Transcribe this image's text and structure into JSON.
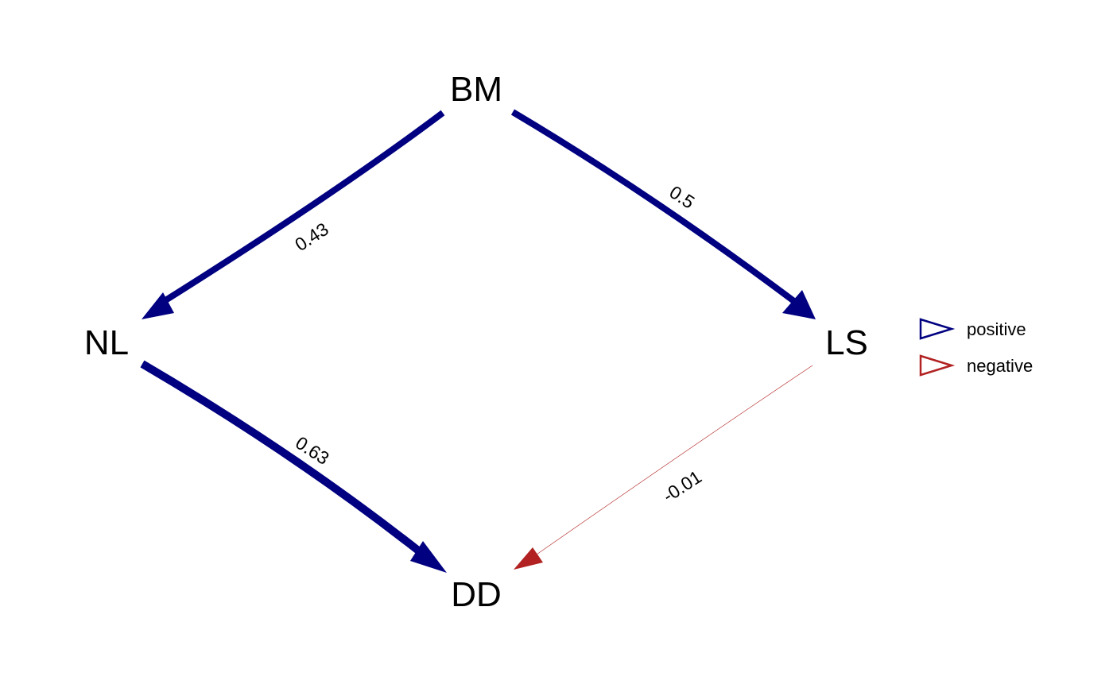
{
  "diagram": {
    "nodes": {
      "bm": "BM",
      "nl": "NL",
      "ls": "LS",
      "dd": "DD"
    },
    "edges": [
      {
        "from": "BM",
        "to": "NL",
        "coefficient": 0.43,
        "label": "0.43",
        "sign": "positive"
      },
      {
        "from": "BM",
        "to": "LS",
        "coefficient": 0.5,
        "label": "0.5",
        "sign": "positive"
      },
      {
        "from": "NL",
        "to": "DD",
        "coefficient": 0.63,
        "label": "0.63",
        "sign": "positive"
      },
      {
        "from": "LS",
        "to": "DD",
        "coefficient": -0.01,
        "label": "-0.01",
        "sign": "negative"
      }
    ]
  },
  "legend": {
    "positive": {
      "label": "positive",
      "color": "#000080"
    },
    "negative": {
      "label": "negative",
      "color": "#b22222"
    }
  }
}
